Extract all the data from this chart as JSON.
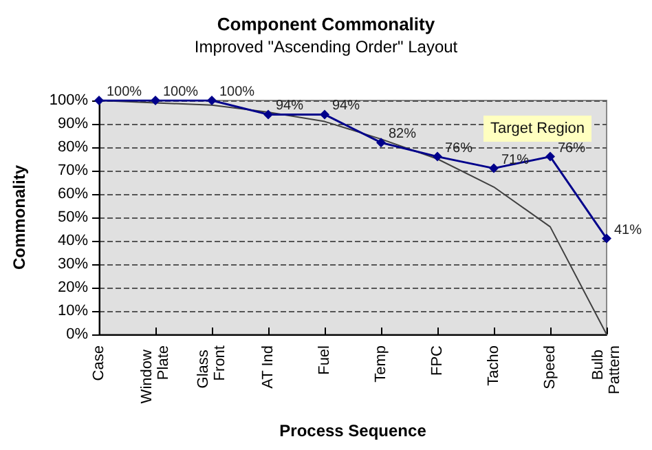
{
  "chart_data": {
    "type": "line",
    "title": "Component Commonality",
    "subtitle": "Improved \"Ascending Order\" Layout",
    "xlabel": "Process Sequence",
    "ylabel": "Commonality",
    "categories": [
      "Case",
      "Window Plate",
      "Glass Front",
      "AT Ind",
      "Fuel",
      "Temp",
      "FPC",
      "Tacho",
      "Speed",
      "Bulb Pattern"
    ],
    "series": [
      {
        "color": "#00008b",
        "values": [
          100,
          100,
          100,
          94,
          94,
          82,
          76,
          71,
          76,
          41
        ],
        "value_labels": [
          "100%",
          "100%",
          "100%",
          "94%",
          "94%",
          "82%",
          "76%",
          "71%",
          "76%",
          "41%"
        ]
      },
      {
        "color": "#404040",
        "marker": "none",
        "values": [
          100,
          99,
          98,
          95,
          91,
          83.5,
          75,
          63,
          46,
          0
        ]
      }
    ],
    "ylim": [
      0,
      100
    ],
    "yticks": [
      {
        "value": 0,
        "label": "0%"
      },
      {
        "value": 10,
        "label": "10%"
      },
      {
        "value": 20,
        "label": "20%"
      },
      {
        "value": 30,
        "label": "30%"
      },
      {
        "value": 40,
        "label": "40%"
      },
      {
        "value": 50,
        "label": "50%"
      },
      {
        "value": 60,
        "label": "60%"
      },
      {
        "value": 70,
        "label": "70%"
      },
      {
        "value": 80,
        "label": "80%"
      },
      {
        "value": 90,
        "label": "90%"
      },
      {
        "value": 100,
        "label": "100%"
      }
    ],
    "annotations": [
      "Target Region"
    ],
    "grid": "y",
    "marker": "diamond",
    "line_style": "solid"
  }
}
